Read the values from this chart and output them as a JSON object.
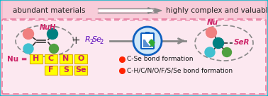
{
  "bg_outer": "#f5b8cc",
  "bg_top": "#f8ccd9",
  "bg_inner": "#fce8f0",
  "border_outer": "#00c0d0",
  "border_inner_color": "#e87da0",
  "top_text_left": "abundant materials",
  "top_text_right": "highly complex and valuable motifs",
  "alkene_label": "NuH",
  "alkene_label_color": "#cc2266",
  "reagent_color": "#5500bb",
  "product_nu_label": "Nu",
  "product_ser_label": "SeR",
  "product_label_color": "#cc2266",
  "nu_box_bg": "#ffff00",
  "nu_box_border": "#ddaa00",
  "nu_elements_row1": [
    "H",
    "C",
    "N",
    "O"
  ],
  "nu_elements_row2": [
    "F",
    "S",
    "Se"
  ],
  "nu_label_color": "#cc2266",
  "nu_text_color": "#cc2266",
  "bullet_color": "#ff2200",
  "legend1": "C-Se bond formation",
  "legend2": "C-H/C/N/O/F/S/Se bond formation",
  "atom_pink": "#f08080",
  "atom_teal": "#008080",
  "atom_cyan": "#40c0d0",
  "atom_green": "#50a040",
  "battery_blue": "#1060c0",
  "battery_light": "#d0e8f8",
  "battery_green": "#30aa30"
}
